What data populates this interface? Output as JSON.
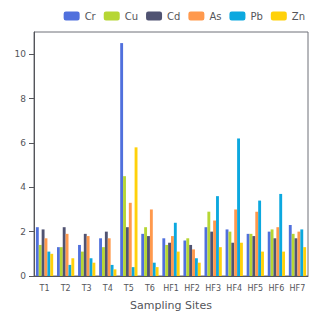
{
  "chart_data": {
    "type": "bar",
    "xlabel": "Sampling Sites",
    "categories": [
      "T1",
      "T2",
      "T3",
      "T4",
      "T5",
      "T6",
      "HF1",
      "HF2",
      "HF3",
      "HF4",
      "HF5",
      "HF6",
      "HF7"
    ],
    "series": [
      {
        "name": "Cr",
        "values": [
          2.2,
          1.3,
          1.4,
          1.7,
          10.5,
          1.9,
          1.7,
          1.6,
          2.2,
          2.1,
          1.9,
          2.0,
          2.3
        ]
      },
      {
        "name": "Cu",
        "values": [
          1.4,
          1.3,
          1.1,
          1.3,
          4.5,
          2.2,
          1.4,
          1.7,
          2.9,
          2.0,
          1.9,
          2.1,
          1.9
        ]
      },
      {
        "name": "Cd",
        "values": [
          2.1,
          2.2,
          1.9,
          2.0,
          2.2,
          1.8,
          1.5,
          1.4,
          2.0,
          1.5,
          1.8,
          1.7,
          1.7
        ]
      },
      {
        "name": "As",
        "values": [
          1.7,
          1.9,
          1.8,
          1.7,
          3.3,
          3.0,
          1.8,
          1.2,
          2.5,
          3.0,
          2.9,
          2.2,
          2.0
        ]
      },
      {
        "name": "Pb",
        "values": [
          1.1,
          0.5,
          0.8,
          0.5,
          0.4,
          0.6,
          2.4,
          0.8,
          3.6,
          6.2,
          3.4,
          3.7,
          2.1
        ]
      },
      {
        "name": "Zn",
        "values": [
          1.0,
          0.8,
          0.6,
          0.3,
          5.8,
          0.4,
          1.1,
          0.6,
          1.3,
          1.5,
          1.1,
          1.1,
          1.3
        ]
      }
    ],
    "ylim": [
      0,
      11
    ],
    "yticks": [
      0,
      2,
      4,
      6,
      8,
      10
    ],
    "grid": false,
    "legend": "upper right"
  }
}
